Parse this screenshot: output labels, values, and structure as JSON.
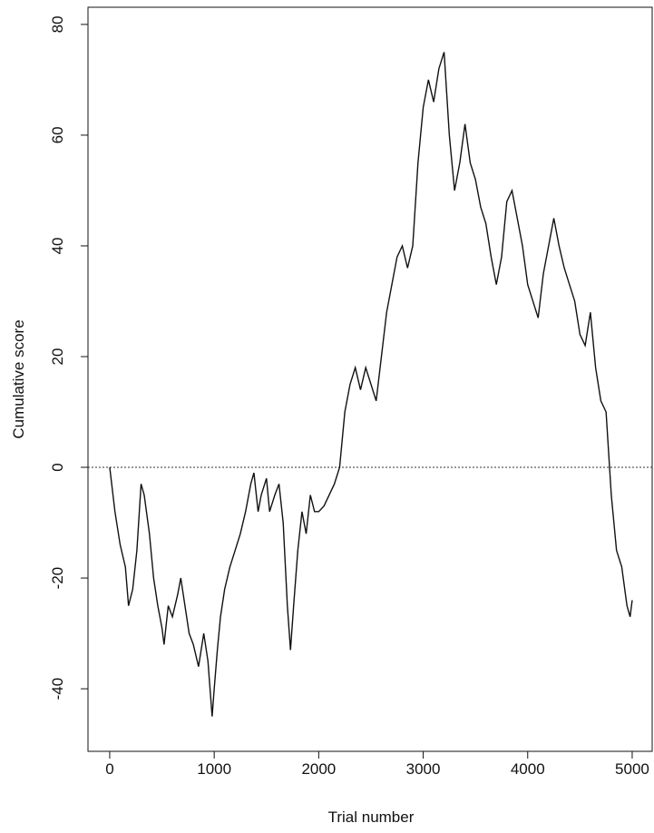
{
  "chart_data": {
    "type": "line",
    "xlabel": "Trial number",
    "ylabel": "Cumulative score",
    "xlim": [
      -208,
      5200
    ],
    "ylim": [
      -51.3,
      83.1
    ],
    "xticks": [
      0,
      1000,
      2000,
      3000,
      4000,
      5000
    ],
    "yticks": [
      -40,
      -20,
      0,
      20,
      40,
      60,
      80
    ],
    "hline": 0,
    "series": [
      {
        "color": "#111111",
        "x": [
          0,
          50,
          100,
          150,
          180,
          220,
          260,
          300,
          330,
          380,
          420,
          460,
          500,
          520,
          560,
          600,
          650,
          680,
          720,
          760,
          800,
          850,
          900,
          940,
          980,
          1000,
          1030,
          1060,
          1100,
          1150,
          1200,
          1250,
          1300,
          1350,
          1380,
          1420,
          1450,
          1500,
          1530,
          1580,
          1620,
          1660,
          1700,
          1730,
          1760,
          1800,
          1840,
          1880,
          1920,
          1960,
          2000,
          2050,
          2100,
          2150,
          2200,
          2250,
          2300,
          2350,
          2400,
          2450,
          2500,
          2550,
          2600,
          2650,
          2700,
          2750,
          2800,
          2850,
          2900,
          2950,
          3000,
          3050,
          3100,
          3150,
          3200,
          3250,
          3300,
          3350,
          3400,
          3450,
          3500,
          3550,
          3600,
          3650,
          3700,
          3750,
          3800,
          3850,
          3900,
          3950,
          4000,
          4050,
          4100,
          4150,
          4200,
          4250,
          4300,
          4350,
          4400,
          4450,
          4500,
          4550,
          4600,
          4650,
          4700,
          4750,
          4800,
          4850,
          4900,
          4950,
          4980,
          5000
        ],
        "values": [
          0,
          -8,
          -14,
          -18,
          -25,
          -22,
          -15,
          -3,
          -5,
          -12,
          -20,
          -25,
          -29,
          -32,
          -25,
          -27,
          -23,
          -20,
          -25,
          -30,
          -32,
          -36,
          -30,
          -35,
          -45,
          -40,
          -33,
          -27,
          -22,
          -18,
          -15,
          -12,
          -8,
          -3,
          -1,
          -8,
          -5,
          -2,
          -8,
          -5,
          -3,
          -10,
          -25,
          -33,
          -25,
          -15,
          -8,
          -12,
          -5,
          -8,
          -8,
          -7,
          -5,
          -3,
          0,
          10,
          15,
          18,
          14,
          18,
          15,
          12,
          20,
          28,
          33,
          38,
          40,
          36,
          40,
          55,
          65,
          70,
          66,
          72,
          75,
          60,
          50,
          55,
          62,
          55,
          52,
          47,
          44,
          38,
          33,
          38,
          48,
          50,
          45,
          40,
          33,
          30,
          27,
          35,
          40,
          45,
          40,
          36,
          33,
          30,
          24,
          22,
          28,
          18,
          12,
          10,
          -5,
          -15,
          -18,
          -25,
          -27,
          -24
        ]
      }
    ]
  }
}
